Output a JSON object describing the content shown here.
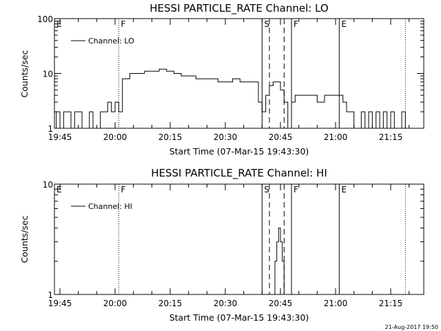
{
  "chart_data": [
    {
      "type": "line",
      "title": "HESSI PARTICLE_RATE Channel: LO",
      "xlabel": "Start Time (07-Mar-15 19:43:30)",
      "ylabel": "Counts/sec",
      "y_scale": "log",
      "ylim": [
        1,
        100
      ],
      "y_ticks": [
        "1",
        "10",
        "100"
      ],
      "xlim": [
        "19:43:30",
        "21:24"
      ],
      "x_ticks": [
        "19:45",
        "20:00",
        "20:15",
        "20:30",
        "20:45",
        "21:00",
        "21:15"
      ],
      "grid": false,
      "legend": "top-left",
      "legend_label": "Channel: LO",
      "segment_markers": [
        {
          "label": "E",
          "time": "19:43:30",
          "style": "none"
        },
        {
          "label": "F",
          "time": "20:01",
          "style": "dotted"
        },
        {
          "label": "S",
          "time": "20:40",
          "style": "solid"
        },
        {
          "label": "",
          "time": "20:42",
          "style": "dashed"
        },
        {
          "label": "",
          "time": "20:46",
          "style": "dashed"
        },
        {
          "label": "F",
          "time": "20:48",
          "style": "solid"
        },
        {
          "label": "E",
          "time": "21:01",
          "style": "solid"
        },
        {
          "label": "",
          "time": "21:19",
          "style": "dotted"
        }
      ],
      "series": [
        {
          "name": "Channel: LO",
          "x": [
            "19:43:30",
            "19:44",
            "19:45",
            "19:46",
            "19:47",
            "19:48",
            "19:49",
            "19:50",
            "19:51",
            "19:52",
            "19:53",
            "19:54",
            "19:55",
            "19:56",
            "19:57",
            "19:58",
            "19:59",
            "20:00",
            "20:01",
            "20:02",
            "20:04",
            "20:06",
            "20:08",
            "20:10",
            "20:12",
            "20:14",
            "20:16",
            "20:18",
            "20:20",
            "20:22",
            "20:24",
            "20:26",
            "20:28",
            "20:30",
            "20:32",
            "20:34",
            "20:36",
            "20:38",
            "20:39",
            "20:40",
            "20:41",
            "20:42",
            "20:43",
            "20:44",
            "20:45",
            "20:46",
            "20:47",
            "20:48",
            "20:49",
            "20:51",
            "20:53",
            "20:55",
            "20:57",
            "20:59",
            "21:01",
            "21:02",
            "21:03",
            "21:04",
            "21:05",
            "21:06",
            "21:07",
            "21:08",
            "21:09",
            "21:10",
            "21:11",
            "21:12",
            "21:13",
            "21:14",
            "21:15",
            "21:16",
            "21:17",
            "21:18",
            "21:19"
          ],
          "y": [
            1,
            2,
            1,
            2,
            2,
            1,
            2,
            2,
            1,
            1,
            2,
            1,
            1,
            2,
            2,
            3,
            2,
            3,
            2,
            8,
            10,
            10,
            11,
            11,
            12,
            11,
            10,
            9,
            9,
            8,
            8,
            8,
            7,
            7,
            8,
            7,
            7,
            7,
            3,
            2,
            4,
            6,
            7,
            7,
            5,
            3,
            1,
            3,
            4,
            4,
            4,
            3,
            4,
            4,
            4,
            3,
            2,
            2,
            1,
            1,
            2,
            1,
            2,
            1,
            2,
            1,
            2,
            1,
            2,
            1,
            1,
            2,
            1
          ]
        }
      ]
    },
    {
      "type": "line",
      "title": "HESSI PARTICLE_RATE Channel: HI",
      "xlabel": "Start Time (07-Mar-15 19:43:30)",
      "ylabel": "Counts/sec",
      "y_scale": "log",
      "ylim": [
        1,
        10
      ],
      "y_ticks": [
        "1",
        "10"
      ],
      "xlim": [
        "19:43:30",
        "21:24"
      ],
      "x_ticks": [
        "19:45",
        "20:00",
        "20:15",
        "20:30",
        "20:45",
        "21:00",
        "21:15"
      ],
      "grid": false,
      "legend": "top-left",
      "legend_label": "Channel: HI",
      "segment_markers": [
        {
          "label": "E",
          "time": "19:43:30",
          "style": "none"
        },
        {
          "label": "F",
          "time": "20:01",
          "style": "dotted"
        },
        {
          "label": "S",
          "time": "20:40",
          "style": "solid"
        },
        {
          "label": "",
          "time": "20:42",
          "style": "dashed"
        },
        {
          "label": "",
          "time": "20:46",
          "style": "dashed"
        },
        {
          "label": "F",
          "time": "20:48",
          "style": "solid"
        },
        {
          "label": "E",
          "time": "21:01",
          "style": "solid"
        },
        {
          "label": "",
          "time": "21:19",
          "style": "dotted"
        }
      ],
      "series": [
        {
          "name": "Channel: HI",
          "x": [
            "20:43",
            "20:43:30",
            "20:44",
            "20:44:30",
            "20:45",
            "20:45:30",
            "20:46"
          ],
          "y": [
            1,
            2,
            3,
            4,
            3,
            2,
            1
          ]
        }
      ]
    }
  ],
  "footer": {
    "date_stamp": "21-Aug-2017 19:50"
  }
}
